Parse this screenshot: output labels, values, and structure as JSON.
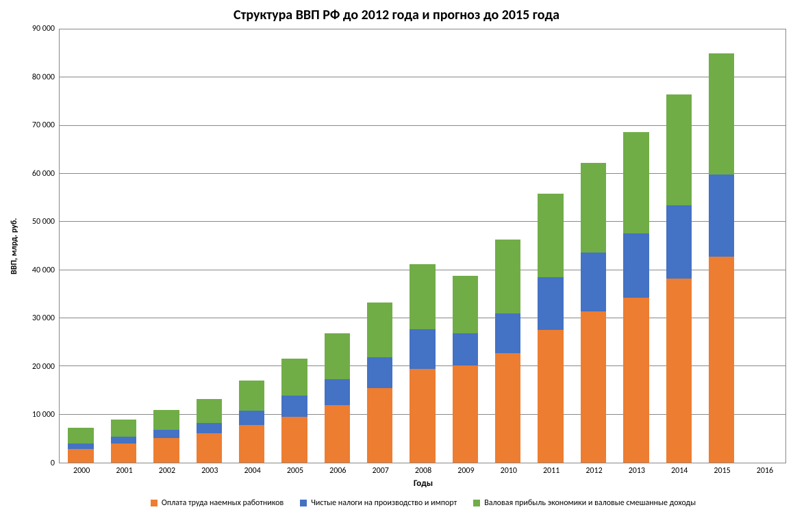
{
  "chart": {
    "type": "stacked-bar",
    "title": "Структура ВВП РФ до 2012 года и прогноз до 2015 года",
    "title_fontsize": 20,
    "title_fontweight": "bold",
    "ylabel": "ВВП, млрд. руб.",
    "ylabel_fontsize": 12,
    "xlabel": "Годы",
    "xlabel_fontsize": 13,
    "tick_fontsize": 12,
    "background_color": "#ffffff",
    "plot_border_color": "#888888",
    "grid_color": "#888888",
    "ylim": [
      0,
      90000
    ],
    "ytick_step": 10000,
    "yticks": [
      "0",
      "10 000",
      "20 000",
      "30 000",
      "40 000",
      "50 000",
      "60 000",
      "70 000",
      "80 000",
      "90 000"
    ],
    "categories": [
      "2000",
      "2001",
      "2002",
      "2003",
      "2004",
      "2005",
      "2006",
      "2007",
      "2008",
      "2009",
      "2010",
      "2011",
      "2012",
      "2013",
      "2014",
      "2015",
      "2016"
    ],
    "bar_width": 0.6,
    "series": [
      {
        "name": "Оплата труда наемных работников",
        "color": "#ed7d31",
        "values": [
          2900,
          4000,
          5100,
          6100,
          7800,
          9500,
          12000,
          15500,
          19500,
          20200,
          22800,
          27600,
          31400,
          34200,
          38300,
          42800,
          0
        ]
      },
      {
        "name": "Чистые налоги на производство и импорт",
        "color": "#4472c4",
        "values": [
          1100,
          1400,
          1700,
          2200,
          3000,
          4400,
          5400,
          6400,
          8200,
          6700,
          8200,
          10900,
          12200,
          13400,
          15200,
          17000,
          0
        ]
      },
      {
        "name": "Валовая прибыль экономики и валовые смешанные доходы",
        "color": "#70ad47",
        "values": [
          3300,
          3600,
          4100,
          4900,
          6200,
          7700,
          9500,
          11400,
          13500,
          11900,
          15300,
          17400,
          18700,
          21100,
          23000,
          25200,
          0
        ]
      }
    ],
    "legend_fontsize": 12
  }
}
